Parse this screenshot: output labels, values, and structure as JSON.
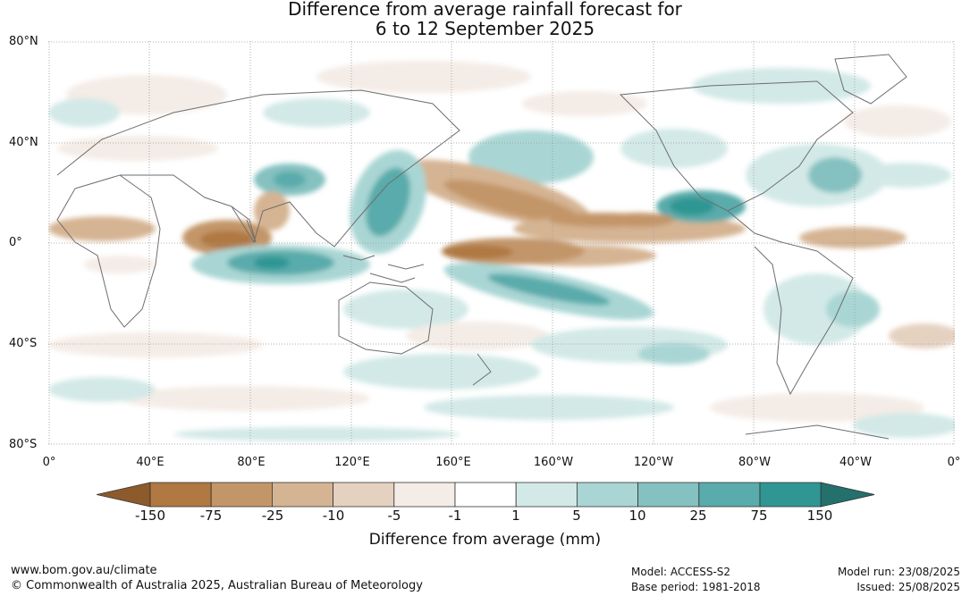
{
  "title_line1": "Difference from average rainfall forecast for",
  "title_line2": "6 to 12 September 2025",
  "map": {
    "lat_labels": [
      "80°N",
      "40°N",
      "0°",
      "40°S",
      "80°S"
    ],
    "lon_labels": [
      "0°",
      "40°E",
      "80°E",
      "120°E",
      "160°E",
      "160°W",
      "120°W",
      "80°W",
      "40°W",
      "0°"
    ]
  },
  "colorbar": {
    "ticks": [
      "-150",
      "-75",
      "-25",
      "-10",
      "-5",
      "-1",
      "1",
      "5",
      "10",
      "25",
      "75",
      "150"
    ],
    "colors": [
      "#8c5a2b",
      "#b07842",
      "#c39669",
      "#d5b493",
      "#e5d1bf",
      "#f4ece6",
      "#ffffff",
      "#d2e9e7",
      "#a9d6d4",
      "#84c1c0",
      "#5aabab",
      "#2f9693",
      "#23706d"
    ],
    "title": "Difference from average (mm)"
  },
  "footer": {
    "website": "www.bom.gov.au/climate",
    "copyright": "© Commonwealth of Australia 2025, Australian Bureau of Meteorology",
    "model": "Model: ACCESS-S2",
    "base_period": "Base period: 1981-2018",
    "model_run": "Model run: 23/08/2025",
    "issued": "Issued: 25/08/2025"
  }
}
